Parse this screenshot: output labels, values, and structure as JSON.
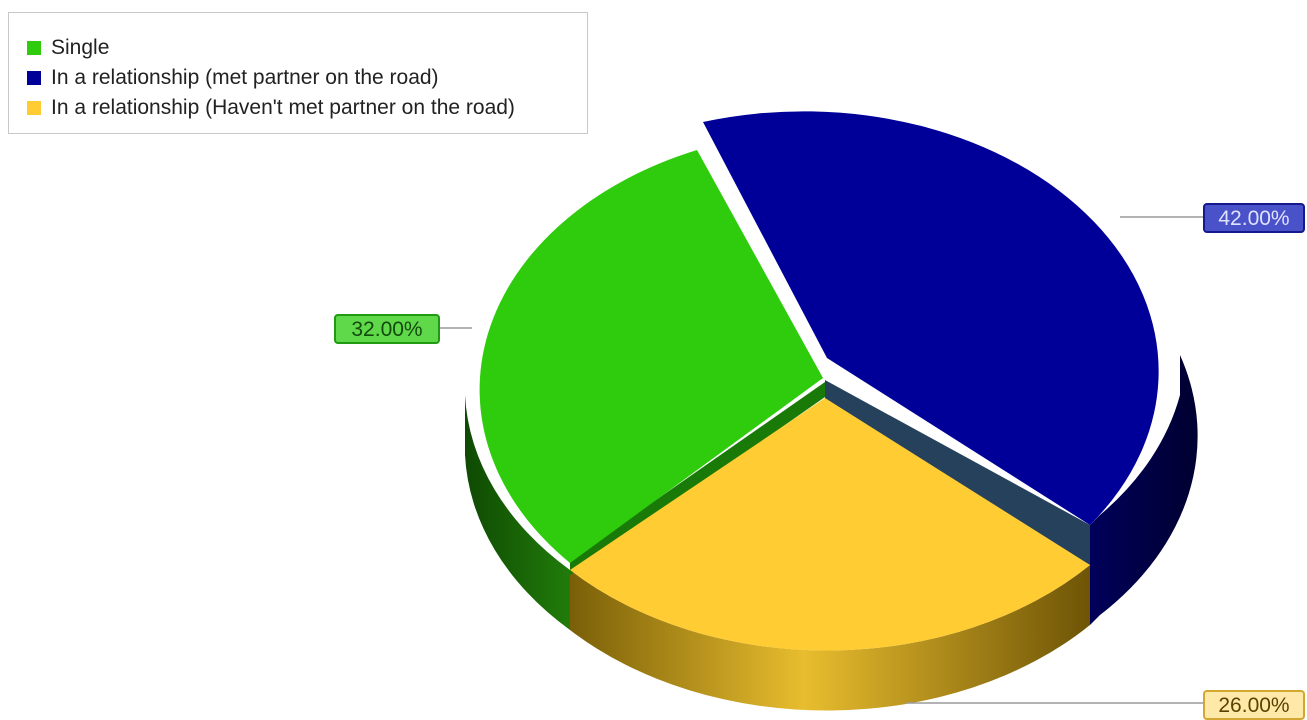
{
  "chart_data": {
    "type": "pie",
    "legend_position": "top-left",
    "slices": [
      {
        "name": "Single",
        "value": 32.0,
        "label": "32.00%",
        "color": "#2ecc0c",
        "side_color": "#1a6b06"
      },
      {
        "name": "In a relationship (met partner on the road)",
        "value": 42.0,
        "label": "42.00%",
        "color": "#000099",
        "side_color": "#00004d"
      },
      {
        "name": "In a relationship (Haven't met partner on the road)",
        "value": 26.0,
        "label": "26.00%",
        "color": "#ffcc33",
        "side_color": "#a88612"
      }
    ]
  }
}
